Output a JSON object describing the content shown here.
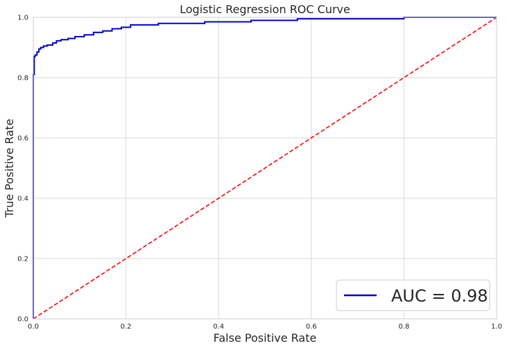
{
  "chart_data": {
    "type": "line",
    "title": "Logistic Regression ROC Curve",
    "xlabel": "False Positive Rate",
    "ylabel": "True Positive Rate",
    "xlim": [
      0,
      1
    ],
    "ylim": [
      0,
      1
    ],
    "x_ticks": [
      "0.0",
      "0.2",
      "0.4",
      "0.6",
      "0.8",
      "1.0"
    ],
    "y_ticks": [
      "0.0",
      "0.2",
      "0.4",
      "0.6",
      "0.8",
      "1.0"
    ],
    "grid": true,
    "legend_position": "bottom-right",
    "series": [
      {
        "name": "AUC = 0.98",
        "color": "#0000cc",
        "style": "solid",
        "x": [
          0.0,
          0.0,
          0.002,
          0.002,
          0.004,
          0.004,
          0.008,
          0.008,
          0.012,
          0.012,
          0.016,
          0.016,
          0.022,
          0.022,
          0.03,
          0.03,
          0.042,
          0.042,
          0.05,
          0.05,
          0.06,
          0.06,
          0.075,
          0.075,
          0.09,
          0.09,
          0.11,
          0.11,
          0.13,
          0.13,
          0.15,
          0.15,
          0.17,
          0.17,
          0.19,
          0.19,
          0.21,
          0.21,
          0.27,
          0.27,
          0.37,
          0.37,
          0.47,
          0.47,
          0.57,
          0.57,
          0.8,
          0.8,
          1.0
        ],
        "y": [
          0.0,
          0.81,
          0.81,
          0.87,
          0.87,
          0.875,
          0.875,
          0.885,
          0.885,
          0.895,
          0.895,
          0.9,
          0.9,
          0.905,
          0.905,
          0.908,
          0.908,
          0.915,
          0.915,
          0.922,
          0.922,
          0.926,
          0.926,
          0.93,
          0.93,
          0.936,
          0.936,
          0.942,
          0.942,
          0.95,
          0.95,
          0.955,
          0.955,
          0.962,
          0.962,
          0.967,
          0.967,
          0.975,
          0.975,
          0.98,
          0.98,
          0.985,
          0.985,
          0.99,
          0.99,
          0.995,
          0.995,
          1.0,
          1.0
        ]
      },
      {
        "name": "",
        "color": "#ff0000",
        "style": "dashed",
        "x": [
          0,
          1
        ],
        "y": [
          0,
          1
        ]
      }
    ],
    "legend": [
      {
        "label": "AUC = 0.98",
        "color": "#0000cc"
      }
    ]
  }
}
